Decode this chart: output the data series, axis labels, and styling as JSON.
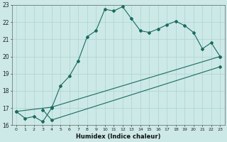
{
  "xlabel": "Humidex (Indice chaleur)",
  "background_color": "#cce9e7",
  "grid_color": "#aad4d0",
  "line_color": "#1a6b5e",
  "line1_x": [
    0,
    1,
    2,
    3,
    4,
    5,
    6,
    7,
    8,
    9,
    10,
    11,
    12,
    13,
    14,
    15,
    16,
    17,
    18,
    19,
    20,
    21,
    22,
    23
  ],
  "line1_y": [
    16.8,
    16.4,
    16.5,
    16.2,
    17.0,
    18.3,
    18.85,
    19.75,
    21.15,
    21.5,
    22.75,
    22.65,
    22.9,
    22.2,
    21.5,
    21.4,
    21.6,
    21.85,
    22.05,
    21.8,
    21.4,
    20.45,
    20.8,
    20.0
  ],
  "line2_x": [
    0,
    4,
    23
  ],
  "line2_y": [
    16.8,
    17.05,
    20.0
  ],
  "line3_x": [
    3,
    4,
    23
  ],
  "line3_y": [
    16.9,
    16.3,
    19.4
  ],
  "ylim": [
    16,
    23
  ],
  "xlim": [
    -0.5,
    23.5
  ],
  "yticks": [
    16,
    17,
    18,
    19,
    20,
    21,
    22,
    23
  ],
  "xticks": [
    0,
    1,
    2,
    3,
    4,
    5,
    6,
    7,
    8,
    9,
    10,
    11,
    12,
    13,
    14,
    15,
    16,
    17,
    18,
    19,
    20,
    21,
    22,
    23
  ],
  "figsize": [
    3.2,
    2.0
  ],
  "dpi": 100
}
